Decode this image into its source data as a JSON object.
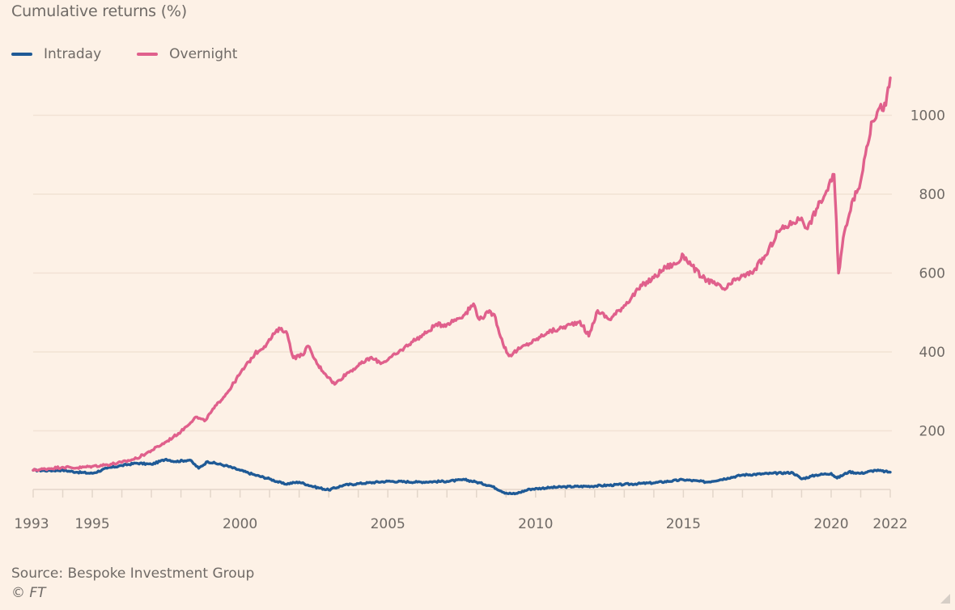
{
  "chart_data": {
    "type": "line",
    "title": "Cumulative returns (%)",
    "xlabel": "",
    "ylabel": "",
    "xlim": [
      1993,
      2022
    ],
    "ylim": [
      0,
      1100
    ],
    "y_ticks": [
      200,
      400,
      600,
      800,
      1000
    ],
    "x_tick_labels": [
      "1993",
      "1995",
      "2000",
      "2005",
      "2010",
      "2015",
      "2020",
      "2022"
    ],
    "x_tick_years": [
      1993,
      1995,
      2000,
      2005,
      2010,
      2015,
      2020,
      2022
    ],
    "grid": true,
    "legend_position": "top-left",
    "source": "Source: Bespoke Investment Group",
    "copyright": "© FT",
    "series": [
      {
        "name": "Intraday",
        "color": "#1f5a96",
        "points": [
          [
            1993.0,
            100
          ],
          [
            1993.5,
            99
          ],
          [
            1994.0,
            100
          ],
          [
            1994.5,
            95
          ],
          [
            1995.0,
            92
          ],
          [
            1995.5,
            105
          ],
          [
            1996.0,
            112
          ],
          [
            1996.5,
            118
          ],
          [
            1997.0,
            115
          ],
          [
            1997.5,
            128
          ],
          [
            1997.8,
            122
          ],
          [
            1998.3,
            126
          ],
          [
            1998.6,
            105
          ],
          [
            1998.9,
            122
          ],
          [
            1999.5,
            112
          ],
          [
            2000.0,
            100
          ],
          [
            2000.5,
            88
          ],
          [
            2001.0,
            78
          ],
          [
            2001.5,
            65
          ],
          [
            2002.0,
            70
          ],
          [
            2002.5,
            58
          ],
          [
            2003.0,
            50
          ],
          [
            2003.5,
            62
          ],
          [
            2004.0,
            66
          ],
          [
            2005.0,
            72
          ],
          [
            2006.0,
            70
          ],
          [
            2007.0,
            72
          ],
          [
            2007.6,
            76
          ],
          [
            2008.0,
            70
          ],
          [
            2008.5,
            60
          ],
          [
            2009.0,
            42
          ],
          [
            2009.3,
            40
          ],
          [
            2009.8,
            52
          ],
          [
            2010.5,
            56
          ],
          [
            2011.0,
            58
          ],
          [
            2012.0,
            60
          ],
          [
            2013.0,
            64
          ],
          [
            2014.0,
            68
          ],
          [
            2015.0,
            76
          ],
          [
            2015.8,
            70
          ],
          [
            2016.5,
            80
          ],
          [
            2017.0,
            88
          ],
          [
            2018.0,
            92
          ],
          [
            2018.7,
            94
          ],
          [
            2019.0,
            78
          ],
          [
            2019.5,
            88
          ],
          [
            2020.0,
            92
          ],
          [
            2020.2,
            80
          ],
          [
            2020.6,
            96
          ],
          [
            2021.0,
            92
          ],
          [
            2021.5,
            100
          ],
          [
            2022.0,
            95
          ]
        ]
      },
      {
        "name": "Overnight",
        "color": "#e0608c",
        "points": [
          [
            1993.0,
            100
          ],
          [
            1993.5,
            104
          ],
          [
            1994.0,
            108
          ],
          [
            1994.5,
            106
          ],
          [
            1995.0,
            110
          ],
          [
            1995.5,
            114
          ],
          [
            1996.0,
            120
          ],
          [
            1996.5,
            130
          ],
          [
            1997.0,
            150
          ],
          [
            1997.5,
            172
          ],
          [
            1998.0,
            198
          ],
          [
            1998.5,
            235
          ],
          [
            1998.8,
            225
          ],
          [
            1999.2,
            265
          ],
          [
            1999.6,
            300
          ],
          [
            2000.0,
            345
          ],
          [
            2000.5,
            395
          ],
          [
            2000.9,
            420
          ],
          [
            2001.2,
            450
          ],
          [
            2001.4,
            460
          ],
          [
            2001.6,
            445
          ],
          [
            2001.8,
            385
          ],
          [
            2002.1,
            392
          ],
          [
            2002.3,
            415
          ],
          [
            2002.6,
            370
          ],
          [
            2003.0,
            335
          ],
          [
            2003.2,
            318
          ],
          [
            2003.6,
            345
          ],
          [
            2004.0,
            365
          ],
          [
            2004.4,
            385
          ],
          [
            2004.8,
            372
          ],
          [
            2005.3,
            395
          ],
          [
            2005.8,
            425
          ],
          [
            2006.3,
            448
          ],
          [
            2006.6,
            468
          ],
          [
            2007.0,
            470
          ],
          [
            2007.6,
            495
          ],
          [
            2007.9,
            522
          ],
          [
            2008.1,
            482
          ],
          [
            2008.4,
            500
          ],
          [
            2008.6,
            495
          ],
          [
            2008.9,
            420
          ],
          [
            2009.1,
            390
          ],
          [
            2009.5,
            410
          ],
          [
            2010.0,
            430
          ],
          [
            2010.4,
            450
          ],
          [
            2010.8,
            458
          ],
          [
            2011.2,
            470
          ],
          [
            2011.5,
            478
          ],
          [
            2011.8,
            440
          ],
          [
            2012.1,
            505
          ],
          [
            2012.5,
            482
          ],
          [
            2013.0,
            518
          ],
          [
            2013.6,
            568
          ],
          [
            2014.0,
            588
          ],
          [
            2014.4,
            615
          ],
          [
            2014.8,
            625
          ],
          [
            2015.0,
            645
          ],
          [
            2015.3,
            618
          ],
          [
            2015.6,
            590
          ],
          [
            2016.0,
            575
          ],
          [
            2016.4,
            558
          ],
          [
            2016.8,
            585
          ],
          [
            2017.3,
            600
          ],
          [
            2017.8,
            645
          ],
          [
            2018.2,
            705
          ],
          [
            2018.7,
            728
          ],
          [
            2019.0,
            740
          ],
          [
            2019.2,
            712
          ],
          [
            2019.5,
            762
          ],
          [
            2019.8,
            800
          ],
          [
            2020.1,
            850
          ],
          [
            2020.25,
            600
          ],
          [
            2020.45,
            705
          ],
          [
            2020.7,
            780
          ],
          [
            2020.95,
            815
          ],
          [
            2021.2,
            920
          ],
          [
            2021.4,
            985
          ],
          [
            2021.6,
            1015
          ],
          [
            2021.85,
            1025
          ],
          [
            2022.0,
            1095
          ]
        ]
      }
    ]
  },
  "legend": {
    "items": [
      {
        "label": "Intraday",
        "color": "#1f5a96"
      },
      {
        "label": "Overnight",
        "color": "#e0608c"
      }
    ]
  },
  "footer": {
    "source": "Source: Bespoke Investment Group",
    "copyright": "© FT"
  },
  "colors": {
    "background": "#fdf1e6",
    "grid": "#f2e2d4",
    "axis": "#e3d6ca",
    "text": "#6f6a66"
  }
}
